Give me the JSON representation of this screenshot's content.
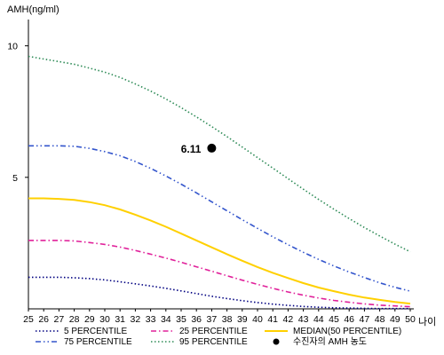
{
  "chart_data": {
    "type": "line",
    "ylabel": "AMH(ng/ml)",
    "xlabel": "나이",
    "x": [
      25,
      26,
      27,
      28,
      29,
      30,
      31,
      32,
      33,
      34,
      35,
      36,
      37,
      38,
      39,
      40,
      41,
      42,
      43,
      44,
      45,
      46,
      47,
      48,
      49,
      50
    ],
    "xlim": [
      25,
      50
    ],
    "ylim": [
      0,
      11
    ],
    "yticks": [
      5,
      10
    ],
    "series": [
      {
        "name": "5 PERCENTILE",
        "color": "#000080",
        "dash": "dot",
        "values": [
          1.2,
          1.2,
          1.2,
          1.18,
          1.15,
          1.1,
          1.03,
          0.95,
          0.87,
          0.78,
          0.68,
          0.58,
          0.48,
          0.39,
          0.31,
          0.24,
          0.18,
          0.13,
          0.09,
          0.06,
          0.04,
          0.03,
          0.02,
          0.01,
          0.01,
          0.01
        ]
      },
      {
        "name": "25 PERCENTILE",
        "color": "#e0209a",
        "dash": "dashdot",
        "values": [
          2.6,
          2.6,
          2.6,
          2.58,
          2.52,
          2.45,
          2.35,
          2.22,
          2.08,
          1.93,
          1.77,
          1.6,
          1.43,
          1.26,
          1.09,
          0.93,
          0.78,
          0.64,
          0.52,
          0.41,
          0.32,
          0.25,
          0.19,
          0.14,
          0.11,
          0.08
        ]
      },
      {
        "name": "MEDIAN(50 PERCENTILE)",
        "color": "#ffd000",
        "dash": "solid",
        "values": [
          4.2,
          4.2,
          4.18,
          4.14,
          4.06,
          3.94,
          3.78,
          3.58,
          3.36,
          3.12,
          2.86,
          2.6,
          2.34,
          2.08,
          1.83,
          1.59,
          1.37,
          1.17,
          0.98,
          0.81,
          0.67,
          0.54,
          0.43,
          0.34,
          0.26,
          0.2
        ]
      },
      {
        "name": "75 PERCENTILE",
        "color": "#3355cc",
        "dash": "dashdotdot",
        "values": [
          6.2,
          6.2,
          6.2,
          6.18,
          6.1,
          5.98,
          5.82,
          5.6,
          5.34,
          5.05,
          4.74,
          4.41,
          4.07,
          3.73,
          3.39,
          3.06,
          2.74,
          2.44,
          2.15,
          1.88,
          1.63,
          1.4,
          1.19,
          0.99,
          0.82,
          0.67
        ]
      },
      {
        "name": "95 PERCENTILE",
        "color": "#2e8b57",
        "dash": "dot",
        "values": [
          9.6,
          9.5,
          9.4,
          9.3,
          9.15,
          9.0,
          8.8,
          8.55,
          8.28,
          7.98,
          7.65,
          7.3,
          6.93,
          6.55,
          6.15,
          5.75,
          5.35,
          4.95,
          4.55,
          4.16,
          3.79,
          3.43,
          3.09,
          2.77,
          2.46,
          2.17
        ]
      }
    ],
    "point": {
      "label": "수진자의 AMH 농도",
      "x": 37,
      "y": 6.11,
      "display": "6.11",
      "color": "#000000"
    },
    "grid": false,
    "legend_position": "bottom"
  }
}
